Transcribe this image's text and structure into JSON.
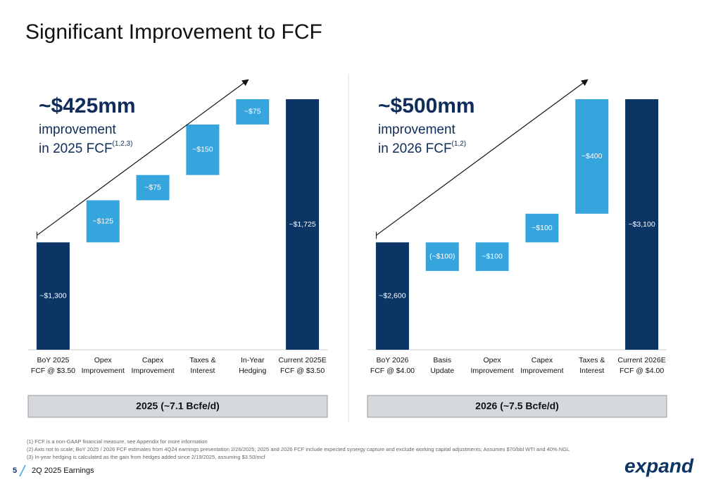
{
  "title": "Significant Improvement to FCF",
  "chart_data": [
    {
      "type": "waterfall",
      "title": "~$425mm",
      "subtitle": "improvement",
      "subtitle2": "in 2025 FCF",
      "note_ref": "(1,2,3)",
      "categories": [
        [
          "BoY 2025",
          "FCF @ $3.50"
        ],
        [
          "Opex",
          "Improvement"
        ],
        [
          "Capex",
          "Improvement"
        ],
        [
          "Taxes &",
          "Interest"
        ],
        [
          "In-Year",
          "Hedging"
        ],
        [
          "Current 2025E",
          "FCF @ $3.50"
        ]
      ],
      "values": [
        1300,
        125,
        75,
        150,
        75,
        1725
      ],
      "value_labels": [
        "~$1,300",
        "~$125",
        "~$75",
        "~$150",
        "~$75",
        "~$1,725"
      ],
      "kinds": [
        "total",
        "step",
        "step",
        "step",
        "step",
        "total"
      ],
      "colors": {
        "total": "#0c3566",
        "step": "#36a5de"
      },
      "footer": "2025 (~7.1 Bcfe/d)"
    },
    {
      "type": "waterfall",
      "title": "~$500mm",
      "subtitle": "improvement",
      "subtitle2": "in 2026 FCF",
      "note_ref": "(1,2)",
      "categories": [
        [
          "BoY 2026",
          "FCF @ $4.00"
        ],
        [
          "Basis",
          "Update"
        ],
        [
          "Opex",
          "Improvement"
        ],
        [
          "Capex",
          "Improvement"
        ],
        [
          "Taxes &",
          "Interest"
        ],
        [
          "Current 2026E",
          "FCF @ $4.00"
        ]
      ],
      "values": [
        2600,
        -100,
        100,
        100,
        400,
        3100
      ],
      "value_labels": [
        "~$2,600",
        "(~$100)",
        "~$100",
        "~$100",
        "~$400",
        "~$3,100"
      ],
      "kinds": [
        "total",
        "step",
        "step",
        "step",
        "step",
        "total"
      ],
      "colors": {
        "total": "#0c3566",
        "step": "#36a5de"
      },
      "footer": "2026 (~7.5 Bcfe/d)"
    }
  ],
  "footnotes": [
    "(1)  FCF is a non-GAAP financial measure, see Appendix for more information",
    "(2)  Axis not to scale; BoY 2025 / 2026 FCF estimates from 4Q24 earnings presentation 2/26/2025; 2025 and 2026 FCF include expected synergy capture and exclude working capital adjustments; Assumes $70/bbl WTI and 40% NGL",
    "(3)  In-year hedging is calculated as the gain from hedges added since 2/19/2025, assuming $3.50/mcf"
  ],
  "page_number": "5",
  "footer_label": "2Q 2025 Earnings",
  "logo": "expand"
}
